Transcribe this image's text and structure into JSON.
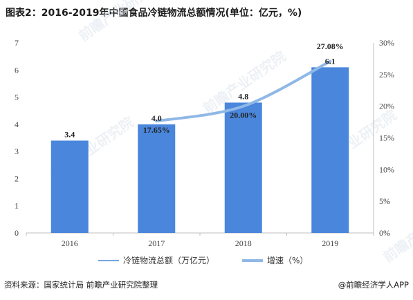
{
  "title": "图表2：2016-2019年中国食品冷链物流总额情况(单位：亿元，%)",
  "source": "资料来源：国家统计局 前瞻产业研究院整理",
  "brand": "@前瞻经济学人APP",
  "watermark": "前瞻产业研究院",
  "colors": {
    "bar": "#4a86dc",
    "line": "#8fb8e6",
    "axis": "#bfbfbf"
  },
  "chart_data": {
    "type": "bar",
    "categories": [
      "2016",
      "2017",
      "2018",
      "2019"
    ],
    "series": [
      {
        "name": "冷链物流总额（万亿元）",
        "type": "bar",
        "axis": "left",
        "values": [
          3.4,
          4.0,
          4.8,
          6.1
        ],
        "labels": [
          "3.4",
          "4.0",
          "4.8",
          "6.1"
        ]
      },
      {
        "name": "增速（%）",
        "type": "line",
        "axis": "right",
        "values": [
          null,
          17.65,
          20.0,
          27.08
        ],
        "labels": [
          "",
          "17.65%",
          "20.00%",
          "27.08%"
        ]
      }
    ],
    "y_left": {
      "min": 0,
      "max": 7,
      "ticks": [
        "0",
        "1",
        "2",
        "3",
        "4",
        "5",
        "6",
        "7"
      ]
    },
    "y_right": {
      "min": 0,
      "max": 30,
      "ticks": [
        "0%",
        "5%",
        "10%",
        "15%",
        "20%",
        "25%",
        "30%"
      ]
    },
    "legend_position": "bottom",
    "grid": false
  }
}
